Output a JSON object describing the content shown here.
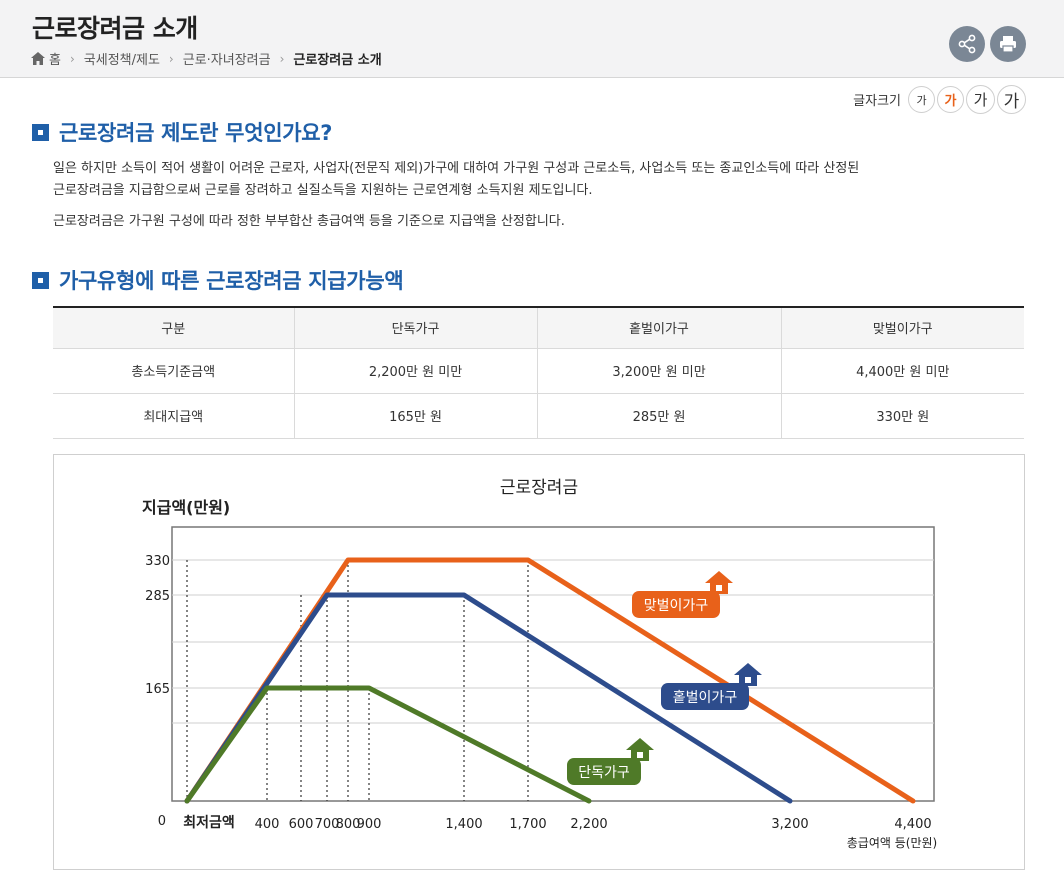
{
  "header": {
    "title": "근로장려금 소개",
    "breadcrumb": [
      "홈",
      "국세정책/제도",
      "근로·자녀장려금",
      "근로장려금 소개"
    ]
  },
  "font_size_control": {
    "label": "글자크기",
    "options": [
      "가",
      "가",
      "가",
      "가"
    ]
  },
  "section1": {
    "title": "근로장려금 제도란 무엇인가요?",
    "para1_line1": "일은 하지만 소득이 적어 생활이 어려운 근로자, 사업자(전문직 제외)가구에 대하여 가구원 구성과 근로소득, 사업소득 또는 종교인소득에 따라 산정된",
    "para1_line2": "근로장려금을 지급함으로써 근로를 장려하고 실질소득을 지원하는 근로연계형 소득지원 제도입니다.",
    "para2": "근로장려금은 가구원 구성에 따라 정한 부부합산 총급여액 등을 기준으로 지급액을 산정합니다."
  },
  "section2": {
    "title": "가구유형에 따른 근로장려금 지급가능액"
  },
  "table": {
    "headers": [
      "구분",
      "단독가구",
      "홑벌이가구",
      "맞벌이가구"
    ],
    "rows": [
      [
        "총소득기준금액",
        "2,200만 원 미만",
        "3,200만 원 미만",
        "4,400만 원 미만"
      ],
      [
        "최대지급액",
        "165만 원",
        "285만 원",
        "330만 원"
      ]
    ]
  },
  "chart_data": {
    "type": "line",
    "title": "근로장려금",
    "ylabel": "지급액(만원)",
    "xlabel": "총급여액 등(만원)",
    "x_ticks": [
      "최저금액",
      "400",
      "600",
      "700",
      "800",
      "900",
      "1,400",
      "1,700",
      "2,200",
      "3,200",
      "4,400"
    ],
    "y_ticks": [
      "0",
      "165",
      "285",
      "330"
    ],
    "ylim": [
      0,
      330
    ],
    "series": [
      {
        "name": "맞벌이가구",
        "color": "#e8611a",
        "points": [
          [
            0,
            0
          ],
          [
            800,
            330
          ],
          [
            1700,
            330
          ],
          [
            4400,
            0
          ]
        ]
      },
      {
        "name": "홑벌이가구",
        "color": "#2d4c8c",
        "points": [
          [
            0,
            0
          ],
          [
            700,
            285
          ],
          [
            1400,
            285
          ],
          [
            3200,
            0
          ]
        ]
      },
      {
        "name": "단독가구",
        "color": "#4f7a28",
        "points": [
          [
            0,
            0
          ],
          [
            400,
            165
          ],
          [
            900,
            165
          ],
          [
            2200,
            0
          ]
        ]
      }
    ],
    "grid": true,
    "legend": "inline labels with house icons"
  },
  "colors": {
    "accent": "#1f5fa8",
    "header_bg": "#f3f3f4",
    "active_font": "#e8611a"
  },
  "icons": {
    "home": "home-icon",
    "share": "share-icon",
    "print": "print-icon",
    "house": "house-icon"
  }
}
